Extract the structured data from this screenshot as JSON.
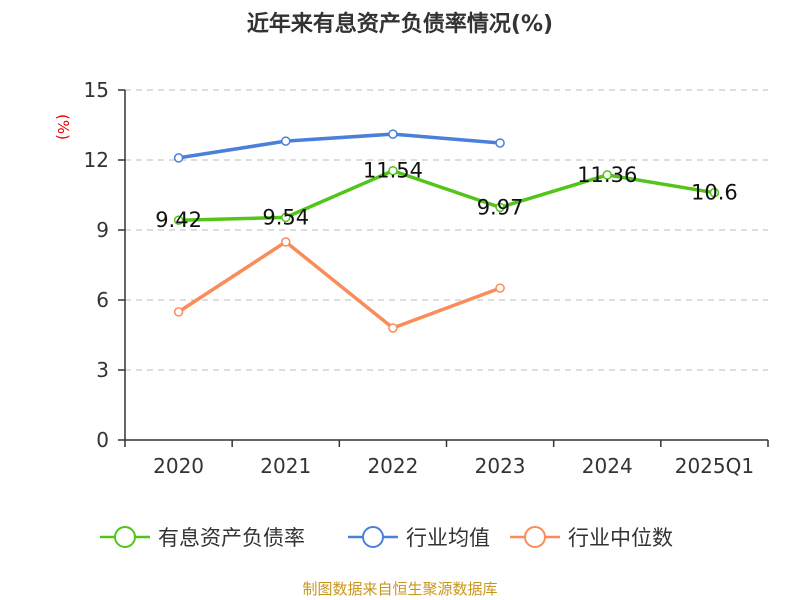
{
  "chart_data": {
    "type": "line",
    "title": "近年来有息资产负债率情况(%)",
    "ylabel": "(%)",
    "xlabel": "",
    "ylim": [
      0,
      15
    ],
    "yticks": [
      0,
      3,
      6,
      9,
      12,
      15
    ],
    "grid": true,
    "legend_position": "bottom",
    "categories": [
      "2020",
      "2021",
      "2022",
      "2023",
      "2024",
      "2025Q1"
    ],
    "series": [
      {
        "name": "有息资产负债率",
        "color": "#52c41a",
        "values": [
          9.42,
          9.54,
          11.54,
          9.97,
          11.36,
          10.6
        ],
        "labels": [
          "9.42",
          "9.54",
          "11.54",
          "9.97",
          "11.36",
          "10.6"
        ]
      },
      {
        "name": "行业均值",
        "color": "#4a7fdc",
        "values": [
          12.09,
          12.81,
          13.11,
          12.73,
          null,
          null
        ]
      },
      {
        "name": "行业中位数",
        "color": "#fa8c5a",
        "values": [
          5.49,
          8.49,
          4.8,
          6.51,
          null,
          null
        ]
      }
    ]
  },
  "footer": "制图数据来自恒生聚源数据库"
}
